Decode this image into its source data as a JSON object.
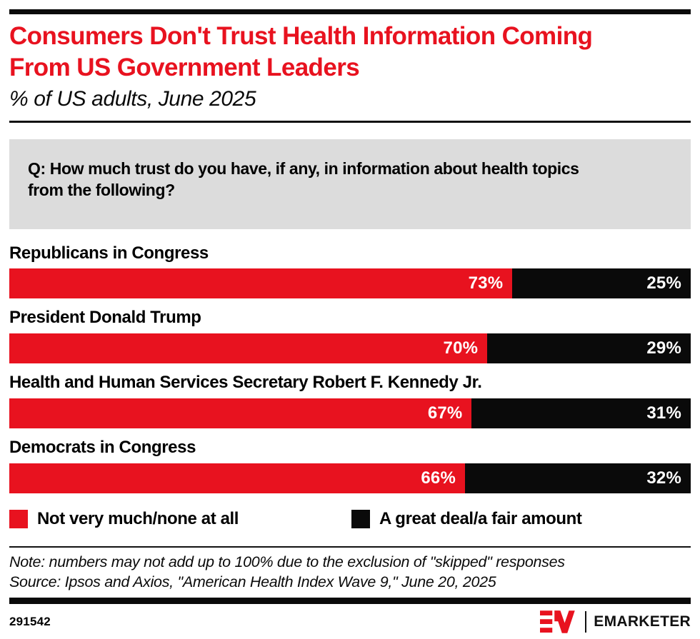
{
  "page": {
    "title": "Consumers Don't Trust Health Information Coming\nFrom US Government Leaders",
    "subtitle": "% of US adults, June 2025",
    "question": "Q: How much trust do you have, if any, in information about health topics\nfrom the following?",
    "note": "Note: numbers may not add up to 100% due to the exclusion of \"skipped\" responses",
    "source": "Source: Ipsos and Axios, \"American Health Index Wave 9,\" June 20, 2025",
    "chart_id": "291542",
    "brand_wordmark": "EMARKETER"
  },
  "colors": {
    "accent_red": "#e8121f",
    "bar_black": "#0a0a0a",
    "question_bg": "#dcdcdc"
  },
  "chart_data": {
    "type": "bar",
    "orientation": "horizontal",
    "stacked": true,
    "normalized_to_row_total": true,
    "title": "Consumers Don't Trust Health Information Coming From US Government Leaders",
    "subtitle": "% of US adults, June 2025",
    "categories": [
      "Republicans in Congress",
      "President Donald Trump",
      "Health and Human Services Secretary Robert F. Kennedy Jr.",
      "Democrats in Congress"
    ],
    "series": [
      {
        "name": "Not very much/none at all",
        "color": "#e8121f",
        "values": [
          73,
          70,
          67,
          66
        ]
      },
      {
        "name": "A great deal/a fair amount",
        "color": "#0a0a0a",
        "values": [
          25,
          29,
          31,
          32
        ]
      }
    ],
    "value_suffix": "%",
    "legend_position": "bottom",
    "grid": false
  },
  "legend": {
    "items": [
      {
        "label": "Not very much/none at all",
        "color": "#e8121f"
      },
      {
        "label": "A great deal/a fair amount",
        "color": "#0a0a0a"
      }
    ]
  }
}
